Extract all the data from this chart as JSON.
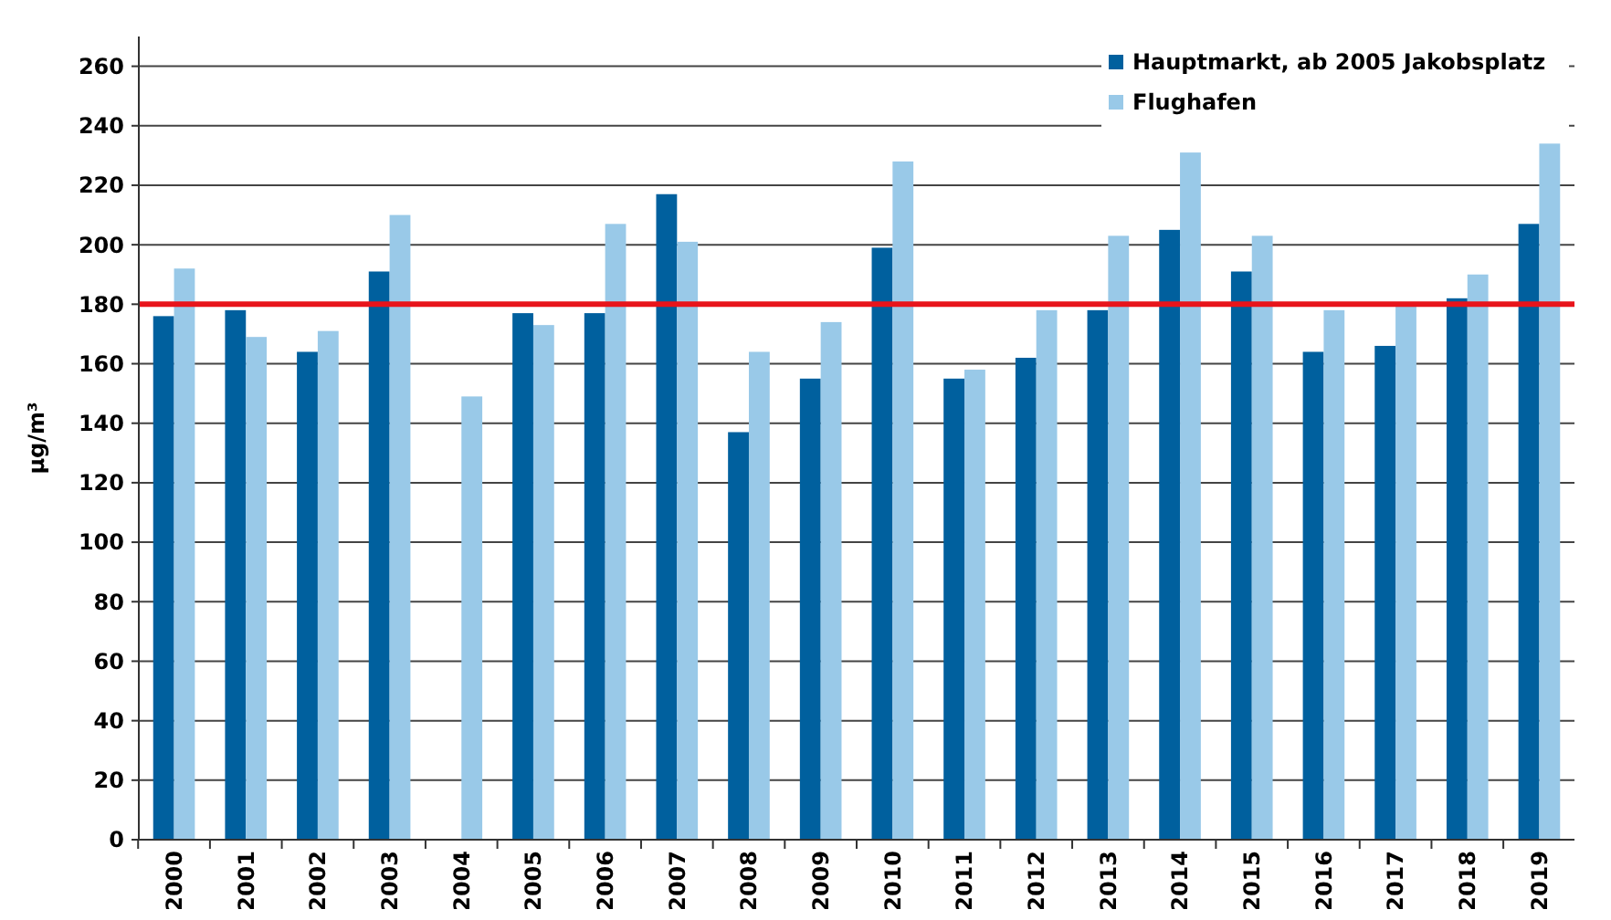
{
  "chart_data": {
    "type": "bar",
    "ylabel": "µg/m³",
    "categories": [
      "2000",
      "2001",
      "2002",
      "2003",
      "2004",
      "2005",
      "2006",
      "2007",
      "2008",
      "2009",
      "2010",
      "2011",
      "2012",
      "2013",
      "2014",
      "2015",
      "2016",
      "2017",
      "2018",
      "2019"
    ],
    "series": [
      {
        "name": "Hauptmarkt, ab 2005 Jakobsplatz",
        "color": "#00609e",
        "values": [
          176,
          178,
          164,
          191,
          null,
          177,
          177,
          217,
          137,
          155,
          199,
          155,
          162,
          178,
          205,
          191,
          164,
          166,
          182,
          207
        ]
      },
      {
        "name": "Flughafen",
        "color": "#99c9e8",
        "values": [
          192,
          169,
          171,
          210,
          149,
          173,
          207,
          201,
          164,
          174,
          228,
          158,
          178,
          203,
          231,
          203,
          178,
          180,
          190,
          234
        ]
      }
    ],
    "ylim": [
      0,
      270
    ],
    "yticks": [
      0,
      20,
      40,
      60,
      80,
      100,
      120,
      140,
      160,
      180,
      200,
      220,
      240,
      260
    ],
    "grid": "y",
    "legend": "top right",
    "ref_lines": [
      {
        "axis": "y",
        "value": 180,
        "color": "#e8141b"
      }
    ]
  }
}
